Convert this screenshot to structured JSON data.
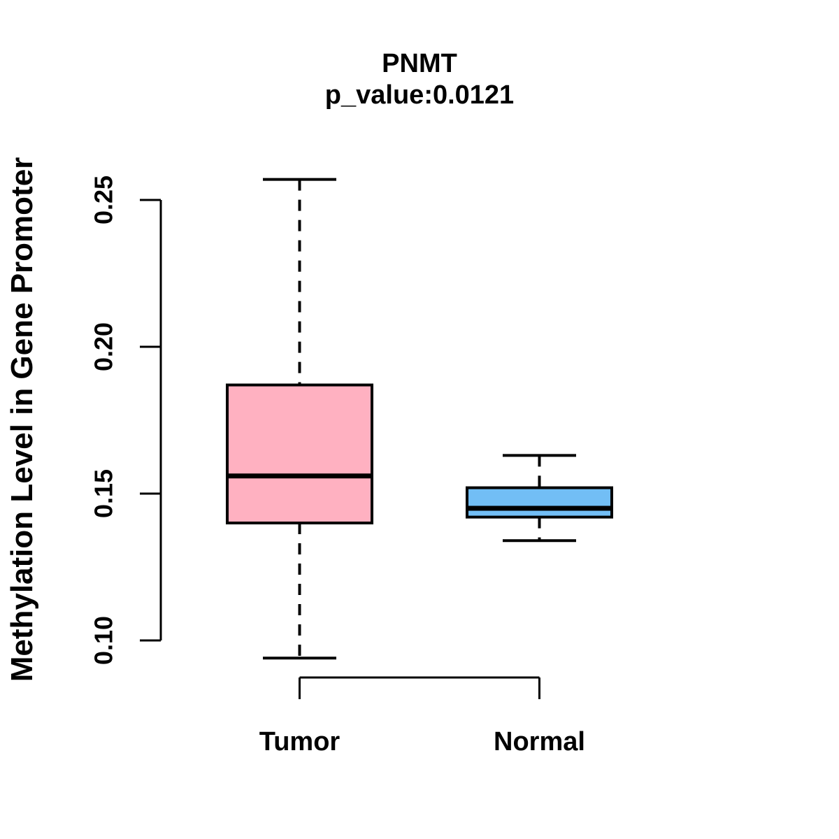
{
  "title": "PNMT",
  "subtitle": "p_value:0.0121",
  "ylabel": "Methylation Level in Gene Promoter",
  "chart_data": {
    "type": "boxplot",
    "title": "PNMT",
    "subtitle": "p_value:0.0121",
    "xlabel": "",
    "ylabel": "Methylation Level in Gene Promoter",
    "categories": [
      "Tumor",
      "Normal"
    ],
    "y_tick_values": [
      0.1,
      0.15,
      0.2,
      0.25
    ],
    "y_tick_labels": [
      "0.10",
      "0.15",
      "0.20",
      "0.25"
    ],
    "ylim": [
      0.094,
      0.257
    ],
    "grid": false,
    "legend": "none",
    "line_color": "#000000",
    "series": [
      {
        "name": "Tumor",
        "color": "#FFB1C1",
        "whisker_low": 0.094,
        "q1": 0.14,
        "median": 0.156,
        "q3": 0.187,
        "whisker_high": 0.257
      },
      {
        "name": "Normal",
        "color": "#72BEF5",
        "whisker_low": 0.134,
        "q1": 0.142,
        "median": 0.145,
        "q3": 0.152,
        "whisker_high": 0.163
      }
    ]
  }
}
